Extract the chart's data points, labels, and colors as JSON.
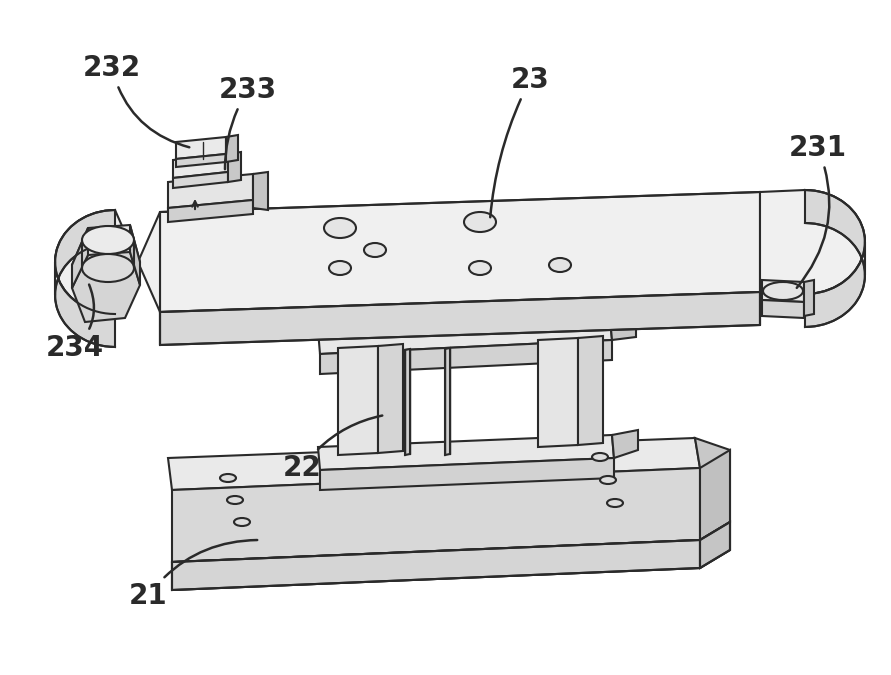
{
  "bg": "#ffffff",
  "lc": "#2a2a2a",
  "lw": 1.5,
  "fc_top": "#f0f0f0",
  "fc_side_l": "#e0e0e0",
  "fc_side_r": "#d0d0d0",
  "fc_front": "#c8c8c8",
  "fc_dark": "#b8b8b8",
  "figsize": [
    8.91,
    6.75
  ],
  "dpi": 100
}
